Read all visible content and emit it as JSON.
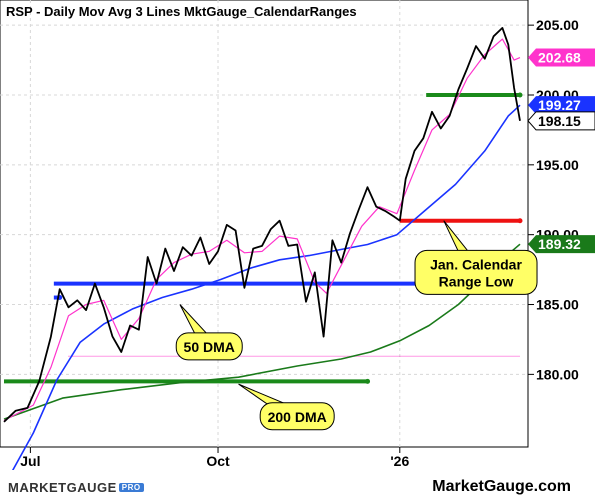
{
  "header": {
    "title": "RSP - Daily  Mov Avg 3 Lines  MktGauge_CalendarRanges"
  },
  "footer": {
    "brand": "MARKETGAUGE",
    "brand_pro": "PRO",
    "site": "MarketGauge.com"
  },
  "colors": {
    "price": "#000000",
    "ma_short": "#ff33cc",
    "ma50": "#1a33ff",
    "ma200": "#1a7a1a",
    "range_low": "#ee1111",
    "range_blue": "#1a33ff",
    "range_green": "#1a8a1a",
    "callout_fill": "#ffff66",
    "badge_pink": "#ff33cc",
    "badge_blue": "#1a33ff",
    "badge_black": "#000000",
    "badge_green": "#1a7a1a"
  },
  "chart_data": {
    "type": "line",
    "title": "RSP - Daily  Mov Avg 3 Lines  MktGauge_CalendarRanges",
    "y_ticks": [
      "205.00",
      "200.00",
      "195.00",
      "190.00",
      "185.00",
      "180.00"
    ],
    "y_tick_values": [
      205,
      200,
      195,
      190,
      185,
      180
    ],
    "ylim": [
      174.8,
      206.8
    ],
    "x_ticks": [
      {
        "label": "Jul",
        "index": 9
      },
      {
        "label": "Oct",
        "index": 73
      },
      {
        "label": "'26",
        "index": 135
      }
    ],
    "x_count": 177,
    "series": [
      {
        "name": "RSP",
        "role": "price",
        "points": [
          [
            0,
            176.6
          ],
          [
            4,
            177.4
          ],
          [
            8,
            177.6
          ],
          [
            12,
            179.5
          ],
          [
            16,
            182.7
          ],
          [
            19,
            186.1
          ],
          [
            22,
            184.8
          ],
          [
            25,
            185.3
          ],
          [
            28,
            184.6
          ],
          [
            31,
            186.5
          ],
          [
            34,
            184.8
          ],
          [
            37,
            182.7
          ],
          [
            40,
            181.6
          ],
          [
            43,
            183.5
          ],
          [
            46,
            183.2
          ],
          [
            49,
            188.4
          ],
          [
            52,
            186.5
          ],
          [
            55,
            189.0
          ],
          [
            58,
            187.4
          ],
          [
            61,
            189.1
          ],
          [
            64,
            188.5
          ],
          [
            67,
            189.8
          ],
          [
            70,
            187.9
          ],
          [
            73,
            188.8
          ],
          [
            76,
            190.7
          ],
          [
            79,
            190.3
          ],
          [
            82,
            186.2
          ],
          [
            85,
            189.0
          ],
          [
            88,
            189.2
          ],
          [
            91,
            190.4
          ],
          [
            94,
            191.0
          ],
          [
            97,
            189.2
          ],
          [
            100,
            189.3
          ],
          [
            103,
            185.2
          ],
          [
            106,
            187.3
          ],
          [
            109,
            182.7
          ],
          [
            112,
            189.6
          ],
          [
            115,
            188.0
          ],
          [
            118,
            190.1
          ],
          [
            121,
            191.8
          ],
          [
            124,
            193.4
          ],
          [
            127,
            192.0
          ],
          [
            130,
            191.7
          ],
          [
            133,
            191.3
          ],
          [
            135,
            191.0
          ],
          [
            137,
            194.0
          ],
          [
            140,
            196.0
          ],
          [
            143,
            196.9
          ],
          [
            146,
            198.8
          ],
          [
            149,
            197.6
          ],
          [
            152,
            198.5
          ],
          [
            155,
            200.4
          ],
          [
            158,
            201.9
          ],
          [
            161,
            203.5
          ],
          [
            164,
            202.6
          ],
          [
            167,
            204.2
          ],
          [
            170,
            204.8
          ],
          [
            172,
            203.6
          ],
          [
            174,
            200.5
          ],
          [
            176,
            198.15
          ]
        ]
      },
      {
        "name": "",
        "role": "short-average",
        "points": [
          [
            0,
            176.7
          ],
          [
            10,
            177.8
          ],
          [
            16,
            180.5
          ],
          [
            22,
            184.2
          ],
          [
            28,
            185.0
          ],
          [
            34,
            185.3
          ],
          [
            40,
            182.5
          ],
          [
            46,
            184.0
          ],
          [
            52,
            186.8
          ],
          [
            58,
            188.0
          ],
          [
            64,
            188.6
          ],
          [
            70,
            188.8
          ],
          [
            76,
            189.6
          ],
          [
            82,
            188.7
          ],
          [
            88,
            188.8
          ],
          [
            94,
            189.9
          ],
          [
            100,
            189.7
          ],
          [
            106,
            186.6
          ],
          [
            110,
            185.8
          ],
          [
            116,
            188.2
          ],
          [
            122,
            190.6
          ],
          [
            128,
            192.0
          ],
          [
            134,
            191.5
          ],
          [
            140,
            194.6
          ],
          [
            146,
            197.5
          ],
          [
            152,
            198.6
          ],
          [
            158,
            201.2
          ],
          [
            164,
            202.9
          ],
          [
            170,
            204.0
          ],
          [
            174,
            202.5
          ],
          [
            176,
            202.68
          ]
        ]
      },
      {
        "name": "50 DMA",
        "role": "ma50",
        "points": [
          [
            0,
            172.0
          ],
          [
            10,
            175.8
          ],
          [
            18,
            179.6
          ],
          [
            26,
            182.3
          ],
          [
            34,
            183.6
          ],
          [
            44,
            184.7
          ],
          [
            54,
            185.5
          ],
          [
            64,
            186.1
          ],
          [
            74,
            186.8
          ],
          [
            84,
            187.6
          ],
          [
            94,
            188.2
          ],
          [
            104,
            188.5
          ],
          [
            114,
            188.9
          ],
          [
            124,
            189.3
          ],
          [
            134,
            190.0
          ],
          [
            144,
            191.8
          ],
          [
            154,
            193.6
          ],
          [
            164,
            196.0
          ],
          [
            172,
            198.5
          ],
          [
            176,
            199.27
          ]
        ]
      },
      {
        "name": "200 DMA",
        "role": "ma200",
        "points": [
          [
            0,
            176.8
          ],
          [
            20,
            178.3
          ],
          [
            40,
            178.9
          ],
          [
            60,
            179.4
          ],
          [
            80,
            179.8
          ],
          [
            100,
            180.6
          ],
          [
            115,
            181.1
          ],
          [
            125,
            181.6
          ],
          [
            135,
            182.4
          ],
          [
            145,
            183.5
          ],
          [
            155,
            185.0
          ],
          [
            165,
            187.0
          ],
          [
            172,
            188.6
          ],
          [
            176,
            189.32
          ]
        ]
      }
    ],
    "calendar_ranges": [
      {
        "level": 186.5,
        "from": 17,
        "to": 176,
        "color": "blue"
      },
      {
        "level": 185.5,
        "from": 17,
        "to": 19,
        "color": "blue"
      },
      {
        "level": 179.5,
        "from": 0,
        "to": 124,
        "color": "green"
      },
      {
        "level": 191.0,
        "from": 135,
        "to": 176,
        "color": "red"
      },
      {
        "level": 200.0,
        "from": 144,
        "to": 176,
        "color": "green"
      },
      {
        "level": 181.3,
        "from": 22,
        "to": 176,
        "color": "pink"
      }
    ],
    "value_badges": [
      {
        "label": "202.68",
        "value": 202.68,
        "color": "pink"
      },
      {
        "label": "199.27",
        "value": 199.27,
        "color": "blue"
      },
      {
        "label": "198.15",
        "value": 198.15,
        "color": "black"
      },
      {
        "label": "189.32",
        "value": 189.32,
        "color": "green"
      }
    ],
    "annotations": [
      {
        "text": [
          "Jan. Calendar",
          "Range Low"
        ],
        "target": [
          150,
          191.0
        ],
        "at": [
          161,
          187.3
        ]
      },
      {
        "text": [
          "50 DMA"
        ],
        "target": [
          60,
          185.0
        ],
        "at": [
          70,
          182.0
        ]
      },
      {
        "text": [
          "200 DMA"
        ],
        "target": [
          80,
          179.3
        ],
        "at": [
          100,
          177.0
        ]
      }
    ]
  }
}
